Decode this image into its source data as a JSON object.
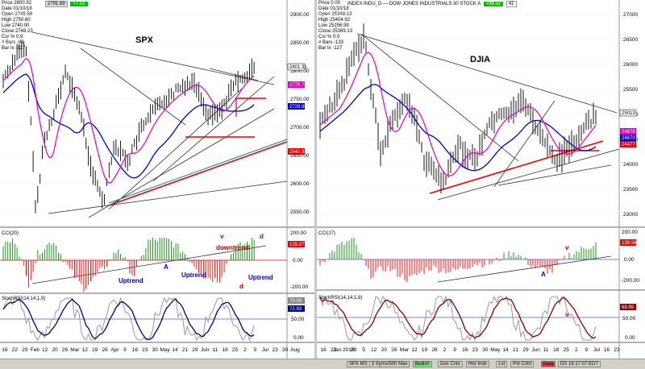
{
  "left": {
    "header": {
      "symbol_value": "2791.69",
      "change": "+7.51"
    },
    "info": [
      "Price 2800.92",
      "Date 01/10/18",
      "Open 2745.58",
      "High 2750.60",
      "Low 2740.00",
      "Close 2748.23",
      "Csr % 0.9",
      "# Bars -89",
      "Bar Ix -127"
    ],
    "title": "SPX",
    "price_axis": [
      "2900.00",
      "2850.00",
      "2800.00",
      "2750.00",
      "2700.00",
      "2650.00",
      "2600.00",
      "2550.00"
    ],
    "price_tags": {
      "last": "2801.31",
      "pink": "2779.76",
      "blue": "2729.95",
      "red": "2645.37"
    },
    "annotations": {
      "downtrend": "downtrend",
      "uptrend1": "Uptrend",
      "uptrend2": "Uptrend",
      "uptrend3": "Uptrend",
      "A": "A",
      "v": "v",
      "d1": "d",
      "d2": "d"
    },
    "cci": {
      "label": "CCI(20)",
      "axis": [
        "200.00",
        "0.00",
        "-200.00"
      ],
      "tag": "125.67"
    },
    "stoch": {
      "label": "StochRSI(14,14,1,9)",
      "axis": [
        "50.00",
        "0.00"
      ],
      "tag1": "79.09",
      "tag2": "72.93"
    },
    "dates": [
      "16",
      "22",
      "29",
      "Feb",
      "12",
      "20",
      "26",
      "Mar",
      "12",
      "19",
      "26",
      "Apr",
      "9",
      "16",
      "23",
      "30",
      "May",
      "14",
      "21",
      "29",
      "Jun",
      "11",
      "18",
      "25",
      "2",
      "9",
      "Jul",
      "23",
      "30",
      "Aug"
    ]
  },
  "right": {
    "header": {
      "symbol": "INDEX:INDU_D — DOW JONES INDUSTRIALS 30 STOCK A",
      "value": "+96.52",
      "n": "41"
    },
    "info": [
      "Price 0.00",
      "Date 01/10/18",
      "Open 25348.13",
      "High 25404.92",
      "Low 25256.99",
      "Close 25369.13",
      "Csr % 0.0",
      "# Bars -133",
      "Bar Ix -127"
    ],
    "title": "DJIA",
    "price_axis": [
      "27000",
      "26500",
      "26000",
      "25500",
      "25000",
      "24500",
      "24000",
      "23500",
      "23000"
    ],
    "price_tags": {
      "last": "25013",
      "pink": "24678",
      "blue": "24670",
      "red": "24477"
    },
    "annotations": {
      "v": "v",
      "A": "A",
      "v2": "v"
    },
    "cci": {
      "label": "CCI(17)",
      "axis": [
        "200.00",
        "0.00",
        "-200.00"
      ],
      "tag": "139.56"
    },
    "stoch": {
      "label": "StochRSI(14,14,1,9)",
      "axis": [
        "50.00",
        "0.00"
      ],
      "tag1": "68.99"
    },
    "dates": [
      "16",
      "22",
      "Jan 2018",
      "29",
      "5",
      "12",
      "20",
      "26",
      "Mar",
      "12",
      "19",
      "26",
      "2",
      "9",
      "16",
      "23",
      "30",
      "May",
      "14",
      "21",
      "29",
      "Jun",
      "11",
      "18",
      "25",
      "2",
      "9",
      "Jul",
      "16",
      "23"
    ]
  },
  "statusbar": {
    "items": [
      "SPX MS",
      "3 Syms/500 Max",
      "Bullish",
      "Doc Cntx",
      "Hist Indx",
      "Lst",
      "Pvt Cntrl",
      "Data",
      "DS 16:17:07 EDT"
    ]
  }
}
